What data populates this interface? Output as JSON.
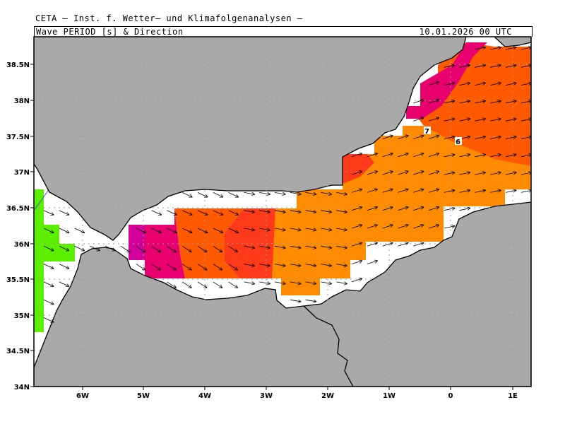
{
  "header": {
    "title": "CETA – Inst. f. Wetter– und Klimafolgenanalysen –",
    "variable": "Wave_PERIOD_[s]_&_Direction",
    "datetime": "10.01.2026  00 UTC"
  },
  "axes": {
    "lon_labels": [
      "6W",
      "5W",
      "4W",
      "3W",
      "2W",
      "1W",
      "0",
      "1E"
    ],
    "lat_labels": [
      "38.5N",
      "38N",
      "37.5N",
      "37N",
      "36.5N",
      "36N",
      "35.5N",
      "35N",
      "34.5N",
      "34N"
    ],
    "lon_range": [
      -6.8,
      1.35
    ],
    "lat_range": [
      34.0,
      38.85
    ]
  },
  "contour_labels": [
    "7",
    "6"
  ],
  "colors": {
    "land": "#a9a9a9",
    "sea_background": "#ffffff",
    "period_short": "#5cf000",
    "period_mid": "#ff8c00",
    "period_mid_high": "#ff5a00",
    "period_high": "#ff3a1a",
    "period_very_high": "#e8006e",
    "period_max": "#d4009c",
    "river": "#2e5cdb",
    "border": "#000000",
    "grid": "#9a9a9a"
  }
}
